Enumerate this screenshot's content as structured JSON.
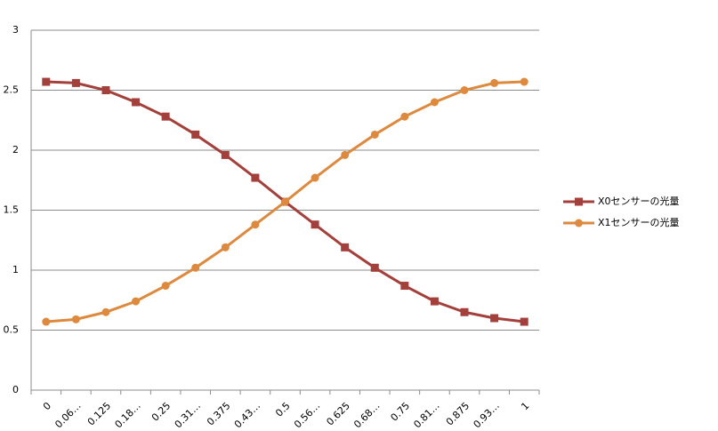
{
  "chart_data": {
    "type": "line",
    "categories": [
      "0",
      "0.06…",
      "0.125",
      "0.18…",
      "0.25",
      "0.31…",
      "0.375",
      "0.43…",
      "0.5",
      "0.56…",
      "0.625",
      "0.68…",
      "0.75",
      "0.81…",
      "0.875",
      "0.93…",
      "1"
    ],
    "series": [
      {
        "name": "X0センサーの光量",
        "color": "#a4403c",
        "marker": "square",
        "values": [
          2.57,
          2.56,
          2.5,
          2.4,
          2.28,
          2.13,
          1.96,
          1.77,
          1.57,
          1.38,
          1.19,
          1.02,
          0.87,
          0.74,
          0.65,
          0.6,
          0.57
        ]
      },
      {
        "name": "X1センサーの光量",
        "color": "#dd8a3e",
        "marker": "circle",
        "values": [
          0.57,
          0.59,
          0.65,
          0.74,
          0.87,
          1.02,
          1.19,
          1.38,
          1.57,
          1.77,
          1.96,
          2.13,
          2.28,
          2.4,
          2.5,
          2.56,
          2.57
        ]
      }
    ],
    "ylim": [
      0,
      3
    ],
    "yticks": [
      0,
      0.5,
      1,
      1.5,
      2,
      2.5,
      3
    ],
    "grid": true,
    "legend": "right"
  }
}
